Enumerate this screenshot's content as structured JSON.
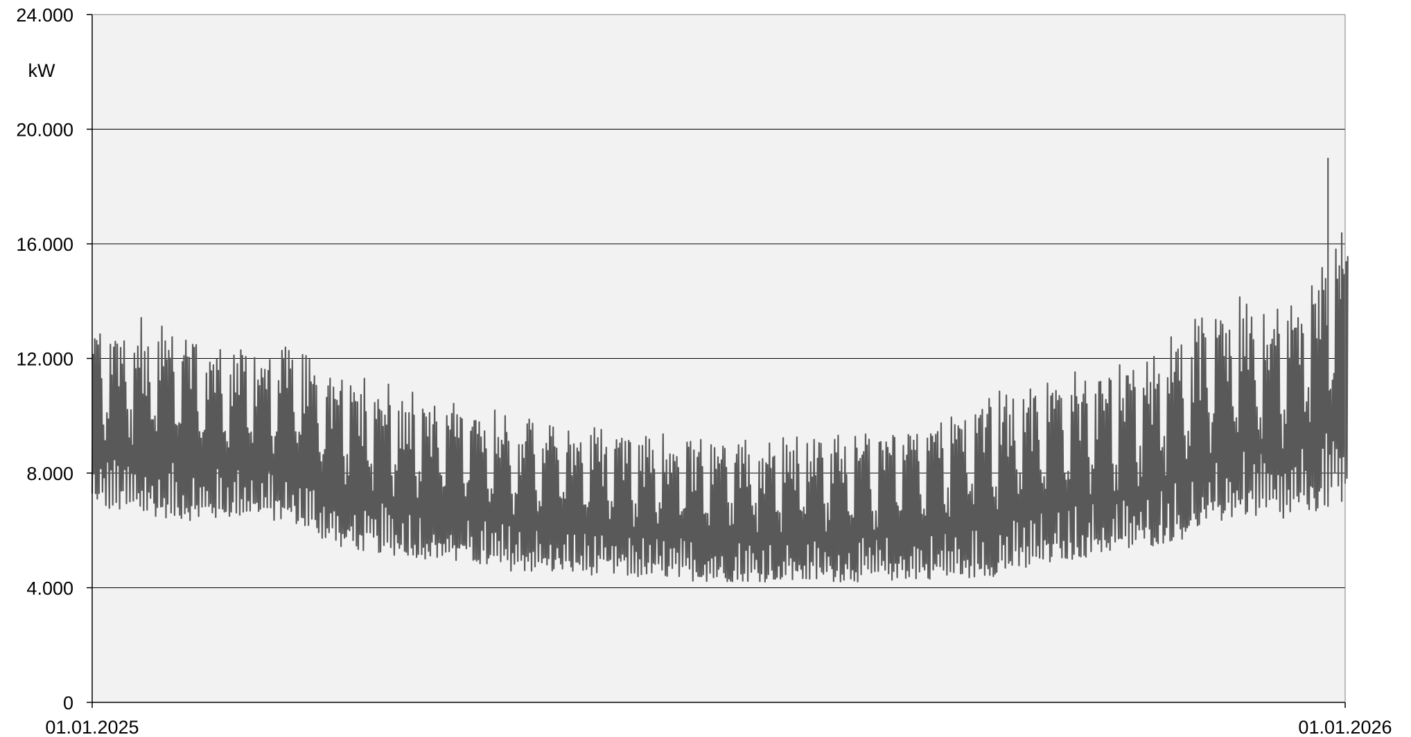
{
  "chart_data": {
    "type": "line",
    "title": "",
    "xlabel": "",
    "ylabel": "kW",
    "xlim": [
      "01.01.2025",
      "01.01.2026"
    ],
    "ylim": [
      0,
      24000
    ],
    "y_ticks": [
      {
        "value": 0,
        "label": "0"
      },
      {
        "value": 4000,
        "label": "4.000"
      },
      {
        "value": 8000,
        "label": "8.000"
      },
      {
        "value": 12000,
        "label": "12.000"
      },
      {
        "value": 16000,
        "label": "16.000"
      },
      {
        "value": 20000,
        "label": "20.000"
      },
      {
        "value": 24000,
        "label": "24.000"
      }
    ],
    "x_ticks": [
      {
        "value": "01.01.2025",
        "label": "01.01.2025"
      },
      {
        "value": "01.01.2026",
        "label": "01.01.2026"
      }
    ],
    "grid": "horizontal",
    "legend": "none",
    "plot_background": "#f2f2f2",
    "line_color": "#595959",
    "series": [
      {
        "name": "",
        "sampling": "daily min/max envelope (kW)",
        "x": [
          "2025-01-01",
          "2025-01-15",
          "2025-02-01",
          "2025-02-15",
          "2025-03-01",
          "2025-03-15",
          "2025-04-01",
          "2025-04-15",
          "2025-05-01",
          "2025-05-15",
          "2025-06-01",
          "2025-06-15",
          "2025-07-01",
          "2025-07-15",
          "2025-08-01",
          "2025-08-15",
          "2025-09-01",
          "2025-09-15",
          "2025-10-01",
          "2025-10-15",
          "2025-11-01",
          "2025-11-15",
          "2025-12-01",
          "2025-12-15",
          "2025-12-31"
        ],
        "daily_min": [
          6800,
          6500,
          6300,
          6500,
          6200,
          5300,
          5100,
          4900,
          4600,
          4500,
          4400,
          4300,
          4200,
          4200,
          4200,
          4200,
          4300,
          4300,
          4600,
          5000,
          5300,
          5700,
          6500,
          6300,
          7000
        ],
        "daily_max": [
          13000,
          13500,
          12600,
          12400,
          12400,
          11500,
          11000,
          10600,
          10200,
          9800,
          9500,
          9400,
          9300,
          9300,
          9400,
          9400,
          9800,
          10600,
          11300,
          11600,
          11900,
          13200,
          14200,
          13800,
          16500
        ],
        "peak_events": [
          {
            "x": "2025-12-27",
            "value": 19000
          },
          {
            "x": "2025-12-31",
            "value": 16400
          }
        ]
      }
    ]
  }
}
